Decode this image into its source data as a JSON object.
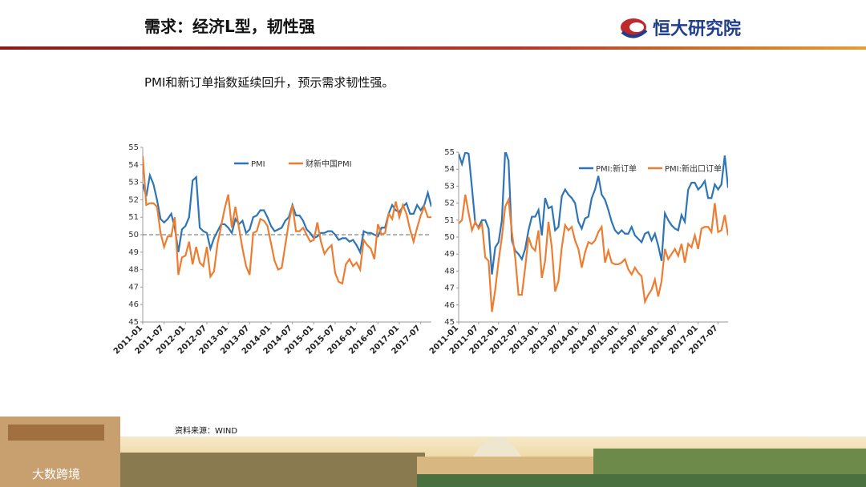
{
  "header": {
    "title": "需求：经济L型，韧性强",
    "logo": "恒大研究院"
  },
  "subtitle": "PMI和新订单指数延续回升，预示需求韧性强。",
  "source": "资料来源：WIND",
  "watermark": "大数跨境",
  "chart_data": [
    {
      "type": "line",
      "categories": [
        "2011-01",
        null,
        null,
        null,
        null,
        null,
        "2011-07",
        null,
        null,
        null,
        null,
        null,
        "2012-01",
        null,
        null,
        null,
        null,
        null,
        "2012-07",
        null,
        null,
        null,
        null,
        null,
        "2013-01",
        null,
        null,
        null,
        null,
        null,
        "2013-07",
        null,
        null,
        null,
        null,
        null,
        "2014-01",
        null,
        null,
        null,
        null,
        null,
        "2014-07",
        null,
        null,
        null,
        null,
        null,
        "2015-01",
        null,
        null,
        null,
        null,
        null,
        "2015-07",
        null,
        null,
        null,
        null,
        null,
        "2016-01",
        null,
        null,
        null,
        null,
        null,
        "2016-07",
        null,
        null,
        null,
        null,
        null,
        "2017-01",
        null,
        null,
        null,
        null,
        null,
        "2017-07",
        null,
        null,
        null
      ],
      "series": [
        {
          "name": "PMI",
          "color": "#2e75b6",
          "values": [
            52.9,
            52.2,
            53.4,
            52.9,
            52.0,
            50.9,
            50.7,
            50.9,
            51.2,
            50.4,
            49.0,
            50.3,
            50.5,
            51.0,
            53.1,
            53.3,
            50.4,
            50.2,
            50.1,
            49.2,
            49.8,
            50.2,
            50.6,
            50.6,
            50.4,
            50.1,
            50.9,
            50.6,
            50.8,
            50.1,
            50.3,
            51.0,
            51.1,
            51.4,
            51.4,
            51.0,
            50.5,
            50.2,
            50.3,
            50.4,
            50.8,
            51.0,
            51.7,
            51.1,
            51.1,
            50.8,
            50.3,
            50.1,
            49.8,
            49.9,
            50.1,
            50.1,
            50.2,
            50.2,
            50.0,
            49.7,
            49.8,
            49.8,
            49.6,
            49.7,
            49.4,
            49.0,
            50.2,
            50.1,
            50.1,
            50.0,
            49.9,
            50.4,
            50.4,
            51.2,
            51.7,
            51.4,
            51.3,
            51.6,
            51.8,
            51.2,
            51.2,
            51.7,
            51.4,
            51.7,
            52.4,
            51.6
          ]
        },
        {
          "name": "财新中国PMI",
          "color": "#ed7d31",
          "values": [
            54.5,
            51.7,
            51.8,
            51.8,
            51.6,
            50.1,
            49.3,
            49.9,
            49.9,
            51.0,
            47.7,
            48.7,
            48.8,
            49.6,
            48.3,
            49.3,
            48.4,
            48.2,
            49.3,
            47.6,
            47.9,
            49.5,
            50.5,
            51.5,
            52.3,
            50.4,
            51.6,
            50.4,
            49.2,
            48.2,
            47.7,
            50.1,
            50.2,
            50.9,
            50.8,
            50.5,
            49.5,
            48.5,
            48.0,
            48.1,
            49.4,
            50.7,
            51.7,
            50.2,
            50.2,
            50.4,
            50.0,
            49.6,
            49.7,
            50.7,
            49.6,
            48.9,
            49.2,
            49.4,
            47.8,
            47.3,
            47.2,
            48.3,
            48.6,
            48.2,
            48.4,
            48.0,
            49.7,
            49.4,
            49.2,
            48.6,
            50.6,
            50.0,
            50.1,
            51.2,
            50.9,
            51.9,
            51.0,
            51.7,
            51.2,
            50.3,
            49.6,
            50.4,
            51.1,
            51.6,
            51.0,
            51.0
          ]
        }
      ],
      "ylim": [
        45,
        55
      ],
      "yticks": [
        45,
        46,
        47,
        48,
        49,
        50,
        51,
        52,
        53,
        54,
        55
      ],
      "reference_line": 50,
      "legend": "top"
    },
    {
      "type": "line",
      "categories": [
        "2011-01",
        null,
        null,
        null,
        null,
        null,
        "2011-07",
        null,
        null,
        null,
        null,
        null,
        "2012-01",
        null,
        null,
        null,
        null,
        null,
        "2012-07",
        null,
        null,
        null,
        null,
        null,
        "2013-01",
        null,
        null,
        null,
        null,
        null,
        "2013-07",
        null,
        null,
        null,
        null,
        null,
        "2014-01",
        null,
        null,
        null,
        null,
        null,
        "2014-07",
        null,
        null,
        null,
        null,
        null,
        "2015-01",
        null,
        null,
        null,
        null,
        null,
        "2015-07",
        null,
        null,
        null,
        null,
        null,
        "2016-01",
        null,
        null,
        null,
        null,
        null,
        "2016-07",
        null,
        null,
        null,
        null,
        null,
        "2017-01",
        null,
        null,
        null,
        null,
        null,
        "2017-07",
        null,
        null,
        null
      ],
      "series": [
        {
          "name": "PMI:新订单",
          "color": "#2e75b6",
          "values": [
            54.9,
            54.3,
            55.0,
            54.9,
            52.9,
            50.8,
            50.6,
            51.0,
            51.0,
            50.5,
            47.8,
            49.4,
            49.7,
            51.0,
            55.1,
            54.5,
            49.8,
            49.2,
            49.0,
            48.7,
            49.3,
            50.4,
            51.2,
            51.2,
            51.6,
            50.1,
            52.3,
            51.7,
            51.8,
            50.4,
            50.6,
            52.4,
            52.8,
            52.5,
            52.3,
            52.0,
            50.9,
            50.5,
            51.1,
            51.2,
            52.3,
            52.8,
            53.6,
            52.5,
            52.2,
            51.6,
            50.9,
            50.4,
            50.2,
            50.4,
            50.2,
            50.2,
            50.6,
            50.1,
            49.9,
            49.7,
            50.2,
            50.3,
            49.8,
            50.2,
            49.5,
            48.6,
            51.4,
            51.0,
            50.7,
            50.5,
            50.4,
            51.3,
            50.9,
            52.8,
            53.2,
            53.2,
            52.8,
            53.0,
            53.3,
            52.3,
            52.3,
            53.1,
            52.8,
            53.1,
            54.8,
            52.9
          ]
        },
        {
          "name": "PMI:新出口订单",
          "color": "#ed7d31",
          "values": [
            50.8,
            51.0,
            52.5,
            51.4,
            50.4,
            50.9,
            50.5,
            50.8,
            48.8,
            48.6,
            45.6,
            46.9,
            48.6,
            50.0,
            51.8,
            52.2,
            50.3,
            48.8,
            46.6,
            46.6,
            48.2,
            50.0,
            49.4,
            49.2,
            50.4,
            47.6,
            48.6,
            50.9,
            49.4,
            46.8,
            47.4,
            49.4,
            50.7,
            50.4,
            50.6,
            49.8,
            49.3,
            48.2,
            49.1,
            49.7,
            49.6,
            49.8,
            50.3,
            50.6,
            48.5,
            49.2,
            48.5,
            48.4,
            48.4,
            48.5,
            48.7,
            48.1,
            47.8,
            48.2,
            47.9,
            47.7,
            46.2,
            46.6,
            46.9,
            47.5,
            46.5,
            47.4,
            49.3,
            48.7,
            49.0,
            49.3,
            48.9,
            49.6,
            48.5,
            49.6,
            49.4,
            50.1,
            49.3,
            50.5,
            50.6,
            50.6,
            50.3,
            52.0,
            50.3,
            50.4,
            51.3,
            50.1
          ]
        }
      ],
      "ylim": [
        45,
        55
      ],
      "yticks": [
        45,
        46,
        47,
        48,
        49,
        50,
        51,
        52,
        53,
        54,
        55
      ],
      "legend": "top"
    }
  ]
}
